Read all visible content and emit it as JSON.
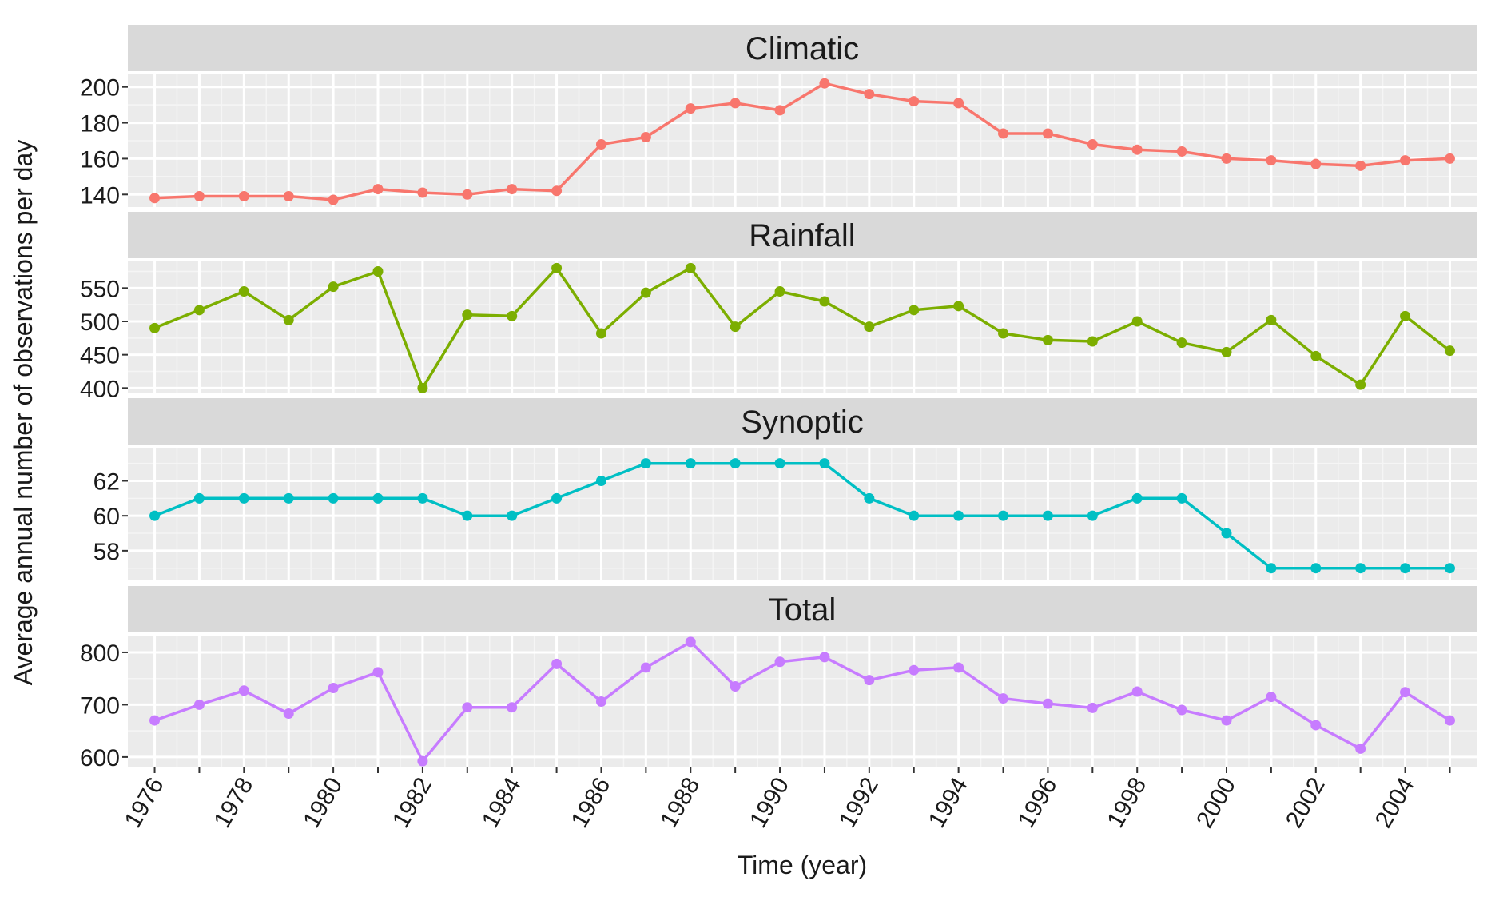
{
  "chart_data": {
    "type": "line",
    "layout": "faceted",
    "xlabel": "Time (year)",
    "ylabel": "Average annual number of observations per day",
    "x": [
      1976,
      1977,
      1978,
      1979,
      1980,
      1981,
      1982,
      1983,
      1984,
      1985,
      1986,
      1987,
      1988,
      1989,
      1990,
      1991,
      1992,
      1993,
      1994,
      1995,
      1996,
      1997,
      1998,
      1999,
      2000,
      2001,
      2002,
      2003,
      2004,
      2005
    ],
    "x_tick_labels": [
      "1976",
      "1978",
      "1980",
      "1982",
      "1984",
      "1986",
      "1988",
      "1990",
      "1992",
      "1994",
      "1996",
      "1998",
      "2000",
      "2002",
      "2004"
    ],
    "grid": true,
    "panels": [
      {
        "name": "Climatic",
        "color": "#F8766D",
        "ylim": [
          133,
          207
        ],
        "yticks": [
          140,
          160,
          180,
          200
        ],
        "ytick_labels": [
          "140",
          "160",
          "180",
          "200"
        ],
        "values": [
          138,
          139,
          139,
          139,
          137,
          143,
          141,
          140,
          143,
          142,
          168,
          172,
          188,
          191,
          187,
          202,
          196,
          192,
          191,
          174,
          174,
          168,
          165,
          164,
          160,
          159,
          157,
          156,
          159,
          160
        ]
      },
      {
        "name": "Rainfall",
        "color": "#7CAE00",
        "ylim": [
          392,
          590
        ],
        "yticks": [
          400,
          450,
          500,
          550
        ],
        "ytick_labels": [
          "400",
          "450",
          "500",
          "550"
        ],
        "values": [
          490,
          517,
          545,
          502,
          552,
          575,
          400,
          510,
          508,
          580,
          482,
          543,
          580,
          492,
          545,
          530,
          492,
          517,
          523,
          482,
          472,
          470,
          500,
          468,
          454,
          502,
          448,
          405,
          508,
          456
        ]
      },
      {
        "name": "Synoptic",
        "color": "#00BFC4",
        "ylim": [
          56.3,
          63.9
        ],
        "yticks": [
          58,
          60,
          62
        ],
        "ytick_labels": [
          "58",
          "60",
          "62"
        ],
        "values": [
          60,
          61,
          61,
          61,
          61,
          61,
          61,
          60,
          60,
          61,
          62,
          63,
          63,
          63,
          63,
          63,
          61,
          60,
          60,
          60,
          60,
          60,
          61,
          61,
          59,
          57,
          57,
          57,
          57,
          57
        ]
      },
      {
        "name": "Total",
        "color": "#C77CFF",
        "ylim": [
          580,
          832
        ],
        "yticks": [
          600,
          700,
          800
        ],
        "ytick_labels": [
          "600",
          "700",
          "800"
        ],
        "values": [
          670,
          700,
          727,
          683,
          732,
          762,
          592,
          695,
          695,
          778,
          706,
          771,
          820,
          735,
          782,
          791,
          747,
          766,
          771,
          712,
          702,
          694,
          725,
          690,
          670,
          715,
          661,
          616,
          724,
          670
        ]
      }
    ]
  }
}
